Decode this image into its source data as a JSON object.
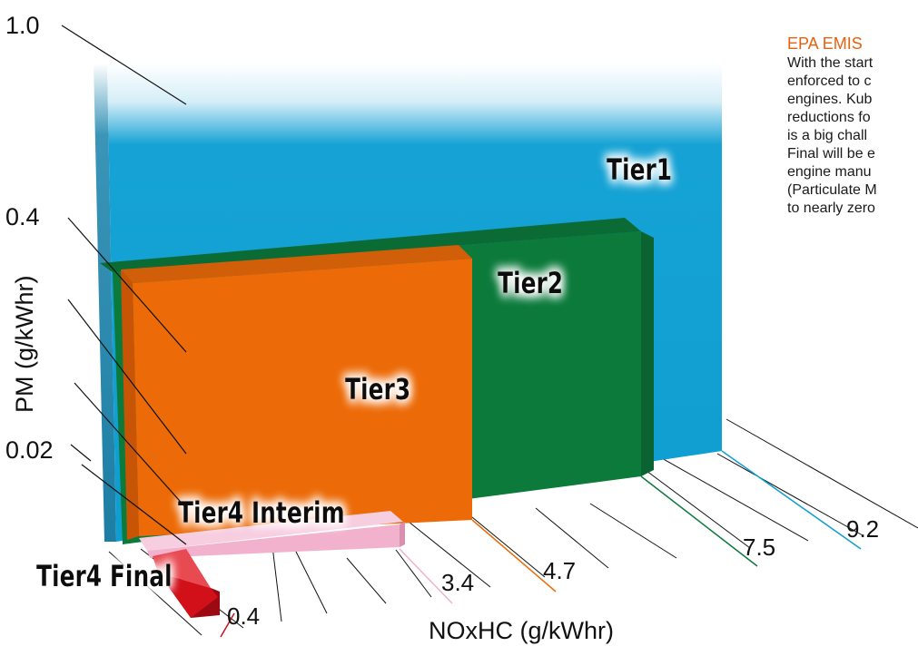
{
  "chart_data": {
    "type": "bar",
    "title": "",
    "xlabel": "NOxHC (g/kWhr)",
    "ylabel": "PM (g/kWhr)",
    "x_ticks": [
      "0.4",
      "3.4",
      "4.7",
      "7.5",
      "9.2"
    ],
    "y_ticks": [
      "0.02",
      "0.4",
      "1.0"
    ],
    "series": [
      {
        "name": "Tier1",
        "nox_hc": 9.2,
        "pm": 1.0,
        "color": "#0f9ed1"
      },
      {
        "name": "Tier2",
        "nox_hc": 7.5,
        "pm": 0.4,
        "color": "#0b7a3b"
      },
      {
        "name": "Tier3",
        "nox_hc": 4.7,
        "pm": 0.4,
        "color": "#ec6a07"
      },
      {
        "name": "Tier4 Interim",
        "nox_hc": 3.4,
        "pm": 0.02,
        "color": "#f2b1cc"
      },
      {
        "name": "Tier4 Final",
        "nox_hc": 0.4,
        "pm": 0.02,
        "color": "#d1101a"
      }
    ]
  },
  "side_text": {
    "title": "EPA EMIS",
    "lines": [
      "With the start",
      "enforced to c",
      "engines. Kub",
      "reductions fo",
      "is a big chall",
      "Final will be e",
      "engine manu",
      "(Particulate M",
      "to nearly zero"
    ]
  }
}
